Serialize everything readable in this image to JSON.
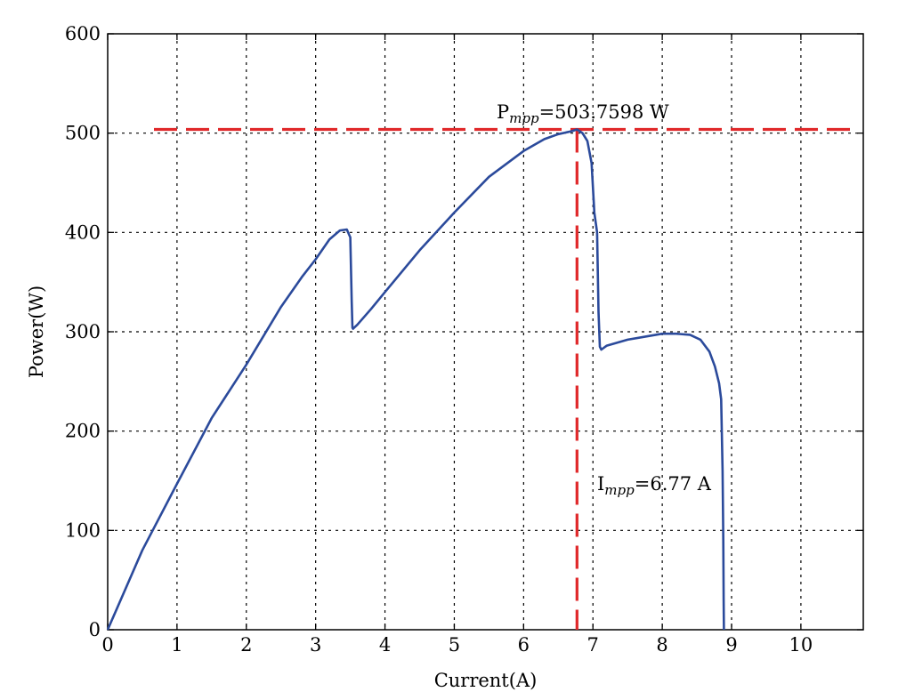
{
  "chart_data": {
    "type": "line",
    "title": "",
    "xlabel": "Current(A)",
    "ylabel": "Power(W)",
    "xlim": [
      0,
      10.9
    ],
    "ylim": [
      0,
      600
    ],
    "xticks": [
      0,
      1,
      2,
      3,
      4,
      5,
      6,
      7,
      8,
      9,
      10
    ],
    "yticks": [
      0,
      100,
      200,
      300,
      400,
      500,
      600
    ],
    "grid": true,
    "grid_style": "dotted",
    "series_color": "#2b4a9b",
    "marker_color": "#e0282a",
    "series": [
      {
        "x": [
          0,
          0.5,
          1,
          1.5,
          2,
          2.5,
          2.8,
          3,
          3.2,
          3.35,
          3.45,
          3.5,
          3.52,
          3.53,
          3.54,
          3.6,
          3.8,
          4,
          4.5,
          5,
          5.5,
          6,
          6.3,
          6.5,
          6.7,
          6.77,
          6.85,
          6.92,
          6.98,
          7.02,
          7.06,
          7.08,
          7.1,
          7.12,
          7.14,
          7.2,
          7.5,
          8,
          8.2,
          8.4,
          8.55,
          8.68,
          8.76,
          8.82,
          8.85,
          8.87,
          8.88,
          8.885,
          8.89
        ],
        "y": [
          0,
          80,
          147,
          213,
          267,
          325,
          355,
          373,
          393,
          402,
          403,
          395,
          330,
          304,
          303,
          307,
          323,
          340,
          382,
          420,
          456,
          482,
          494,
          499,
          502,
          503.76,
          500,
          492,
          470,
          420,
          400,
          320,
          285,
          282,
          283,
          286,
          292,
          298,
          298,
          297,
          292,
          280,
          265,
          248,
          232,
          160,
          90,
          30,
          0
        ]
      }
    ],
    "annotations": {
      "pmpp_prefix": "P",
      "pmpp_sub": "mpp",
      "pmpp_value": "=503.7598 W",
      "impp_prefix": "I",
      "impp_sub": "mpp",
      "impp_value": "=6.77 A"
    },
    "mpp": {
      "x": 6.77,
      "y": 503.7598
    }
  }
}
